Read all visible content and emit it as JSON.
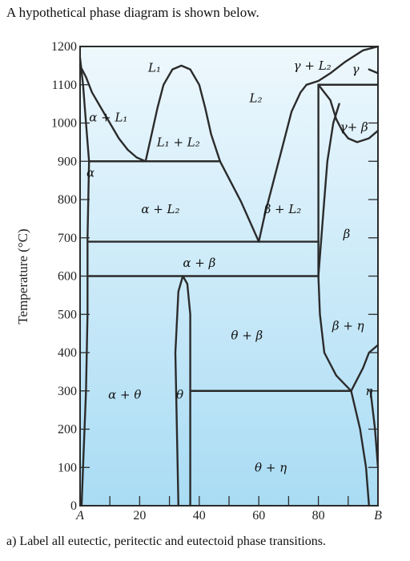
{
  "intro": "A hypothetical phase diagram is shown below.",
  "question": "a)  Label all eutectic, peritectic and eutectoid phase transitions.",
  "colors": {
    "background_top": "#eef8fd",
    "background_bottom": "#a9dcf4",
    "lines": "#2b2b2b"
  },
  "chart_data": {
    "type": "phase-diagram",
    "ylabel": "Temperature (°C)",
    "ylim": [
      0,
      1200
    ],
    "xlim": [
      0,
      100
    ],
    "y_ticks": [
      "0",
      "100",
      "200",
      "300",
      "400",
      "500",
      "600",
      "700",
      "800",
      "900",
      "1000",
      "1100",
      "1200"
    ],
    "x_ticks": [
      "A",
      "20",
      "40",
      "60",
      "80",
      "B"
    ],
    "phase_labels": [
      {
        "text": "L1",
        "display": "L₁",
        "x": 25,
        "y": 1145
      },
      {
        "text": "L2",
        "display": "L₂",
        "x": 59,
        "y": 1065
      },
      {
        "text": "γ+L2",
        "display": "γ + L₂",
        "x": 78,
        "y": 1150
      },
      {
        "text": "γ",
        "display": "γ",
        "x": 92.5,
        "y": 1140
      },
      {
        "text": "γ+β",
        "display": "γ+ β",
        "x": 92,
        "y": 990
      },
      {
        "text": "α+L1",
        "display": "α + L₁",
        "x": 9.5,
        "y": 1015
      },
      {
        "text": "α",
        "display": "α",
        "x": 3.5,
        "y": 870
      },
      {
        "text": "L1+L2",
        "display": "L₁ + L₂",
        "x": 33,
        "y": 950
      },
      {
        "text": "α+L2",
        "display": "α + L₂",
        "x": 27,
        "y": 775
      },
      {
        "text": "β+L2",
        "display": "β + L₂",
        "x": 68,
        "y": 775
      },
      {
        "text": "β",
        "display": "β",
        "x": 89.5,
        "y": 710
      },
      {
        "text": "α+β",
        "display": "α + β",
        "x": 40,
        "y": 635
      },
      {
        "text": "θ+β",
        "display": "θ + β",
        "x": 56,
        "y": 445
      },
      {
        "text": "β+η",
        "display": "β + η",
        "x": 90,
        "y": 470
      },
      {
        "text": "α+θ",
        "display": "α + θ",
        "x": 15,
        "y": 290
      },
      {
        "text": "θ",
        "display": "θ",
        "x": 33.5,
        "y": 290
      },
      {
        "text": "η",
        "display": "η",
        "x": 97,
        "y": 300
      },
      {
        "text": "θ+η",
        "display": "θ + η",
        "x": 64,
        "y": 100
      }
    ],
    "invariant_lines": [
      {
        "T": 1100,
        "x_from": 80,
        "x_to": 100
      },
      {
        "T": 900,
        "x_from": 3,
        "x_to": 47
      },
      {
        "T": 690,
        "x_from": 3,
        "x_to": 80
      },
      {
        "T": 600,
        "x_from": 3,
        "x_to": 80
      },
      {
        "T": 300,
        "x_from": 37,
        "x_to": 91
      }
    ],
    "boundaries": [
      [
        [
          0,
          1150
        ],
        [
          2,
          1120
        ],
        [
          4,
          1080
        ],
        [
          7,
          1040
        ],
        [
          10,
          1000
        ],
        [
          13,
          960
        ],
        [
          16,
          930
        ],
        [
          19,
          910
        ],
        [
          22,
          900
        ]
      ],
      [
        [
          0,
          1170
        ],
        [
          1,
          1100
        ],
        [
          2,
          1000
        ],
        [
          3,
          900
        ]
      ],
      [
        [
          22,
          900
        ],
        [
          24,
          970
        ],
        [
          26,
          1040
        ],
        [
          28,
          1100
        ],
        [
          31,
          1140
        ],
        [
          34,
          1150
        ],
        [
          37,
          1140
        ],
        [
          40,
          1100
        ],
        [
          42,
          1040
        ],
        [
          44,
          970
        ],
        [
          47,
          900
        ]
      ],
      [
        [
          47,
          900
        ],
        [
          54,
          795
        ],
        [
          60,
          690
        ]
      ],
      [
        [
          60,
          690
        ],
        [
          62,
          760
        ],
        [
          65,
          850
        ],
        [
          68,
          940
        ],
        [
          71,
          1030
        ],
        [
          74,
          1080
        ],
        [
          76,
          1100
        ]
      ],
      [
        [
          76,
          1100
        ],
        [
          80,
          1110
        ],
        [
          84,
          1130
        ],
        [
          89,
          1160
        ],
        [
          95,
          1190
        ],
        [
          100,
          1200
        ]
      ],
      [
        [
          80,
          1100
        ],
        [
          80,
          600
        ]
      ],
      [
        [
          80,
          1100
        ],
        [
          84,
          1060
        ],
        [
          86,
          1010
        ],
        [
          88,
          980
        ],
        [
          90,
          960
        ],
        [
          93,
          950
        ],
        [
          97,
          960
        ],
        [
          100,
          980
        ]
      ],
      [
        [
          87,
          1050
        ],
        [
          85,
          1000
        ],
        [
          83,
          900
        ],
        [
          82,
          800
        ],
        [
          81,
          700
        ],
        [
          80,
          600
        ],
        [
          80.5,
          500
        ],
        [
          82,
          400
        ],
        [
          86,
          340
        ],
        [
          91,
          300
        ]
      ],
      [
        [
          3,
          900
        ],
        [
          2.5,
          700
        ],
        [
          2.5,
          500
        ],
        [
          2,
          300
        ],
        [
          1,
          100
        ],
        [
          0.5,
          0
        ]
      ],
      [
        [
          33,
          0
        ],
        [
          32.5,
          200
        ],
        [
          32,
          400
        ],
        [
          33,
          560
        ],
        [
          34.5,
          600
        ],
        [
          36,
          580
        ],
        [
          37,
          500
        ],
        [
          37,
          300
        ],
        [
          37,
          0
        ]
      ],
      [
        [
          91,
          300
        ],
        [
          95,
          360
        ],
        [
          97,
          400
        ],
        [
          100,
          420
        ]
      ],
      [
        [
          91,
          300
        ],
        [
          94,
          200
        ],
        [
          96,
          100
        ],
        [
          97,
          0
        ]
      ],
      [
        [
          97.5,
          300
        ],
        [
          99,
          200
        ],
        [
          100,
          100
        ]
      ],
      [
        [
          97,
          1140
        ],
        [
          100,
          1130
        ]
      ]
    ],
    "tick_marks_x": [
      10,
      20,
      30,
      40,
      50,
      60,
      70,
      80,
      90
    ]
  }
}
